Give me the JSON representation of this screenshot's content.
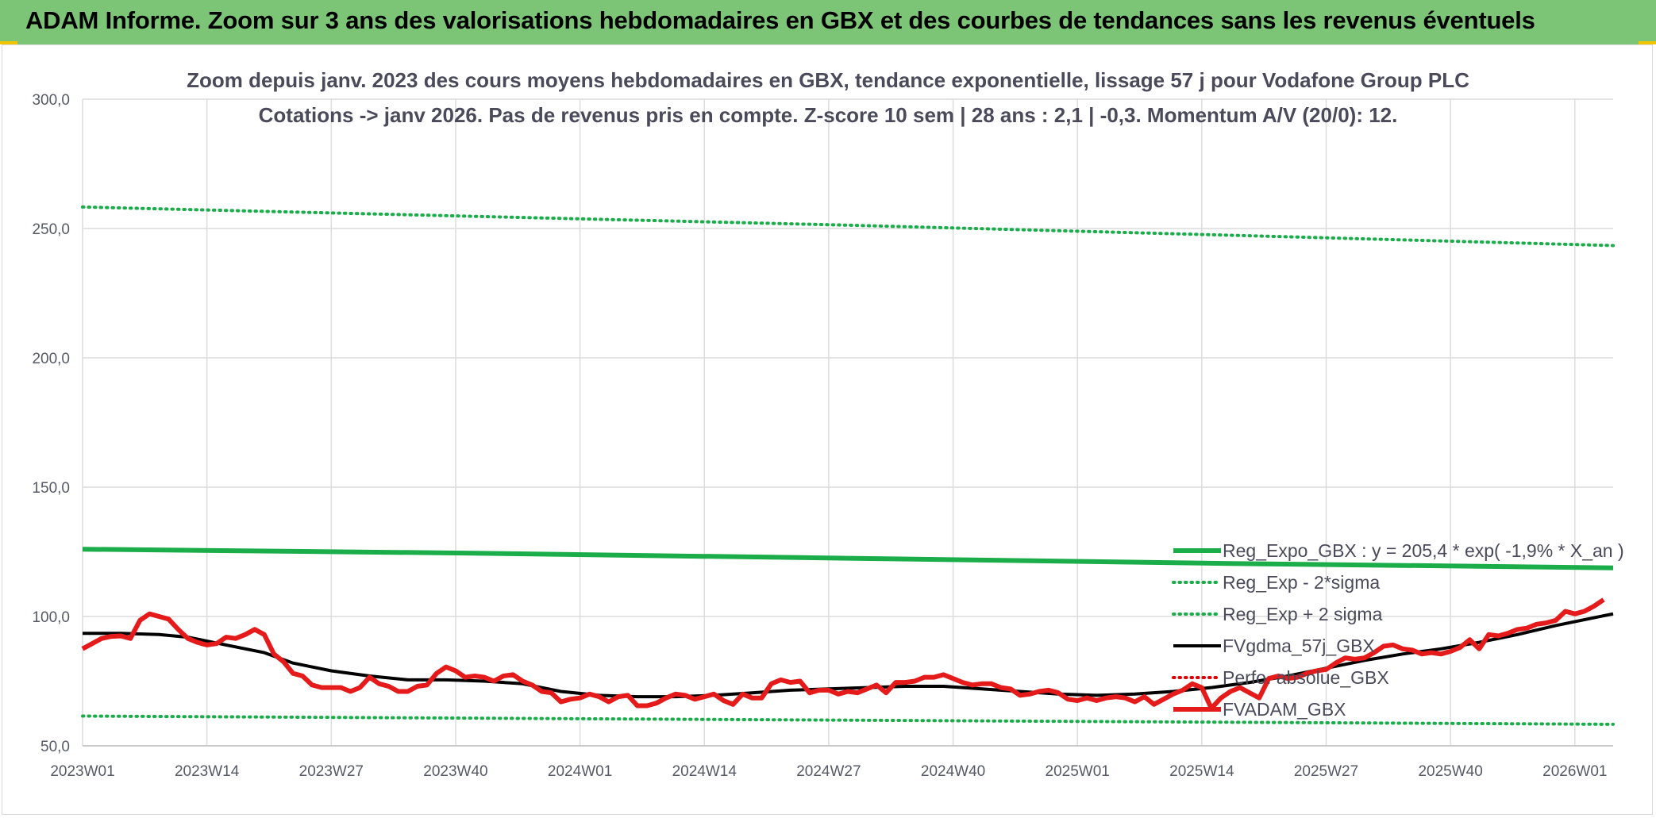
{
  "banner": {
    "title": "ADAM Informe. Zoom sur 3 ans des valorisations hebdomadaires en GBX et des courbes de tendances sans les revenus éventuels",
    "bg_color": "#7cc576",
    "corner_color": "#f2c500"
  },
  "chart_data": {
    "type": "line",
    "title_line1": "Zoom depuis janv. 2023 des cours moyens hebdomadaires en GBX, tendance exponentielle, lissage 57 j pour Vodafone Group PLC",
    "title_line2": "Cotations -> janv 2026. Pas de revenus pris en compte. Z-score 10 sem | 28 ans : 2,1 | -0,3. Momentum A/V (20/0): 12.",
    "x_tick_labels": [
      "2023W01",
      "2023W14",
      "2023W27",
      "2023W40",
      "2024W01",
      "2024W14",
      "2024W27",
      "2024W40",
      "2025W01",
      "2025W14",
      "2025W27",
      "2025W40",
      "2026W01"
    ],
    "x_tick_weeks": [
      0,
      13,
      26,
      39,
      52,
      65,
      78,
      91,
      104,
      117,
      130,
      143,
      156
    ],
    "xlim_weeks": [
      0,
      160
    ],
    "ylim": [
      50,
      300
    ],
    "y_ticks": [
      "50,0",
      "100,0",
      "150,0",
      "200,0",
      "250,0",
      "300,0"
    ],
    "grid": true,
    "legend_position": "bottom-right",
    "series": [
      {
        "name": "Reg_Expo_GBX : y = 205,4 * exp( -1,9% *  X_an )",
        "color": "#1aad4a",
        "style": "solid-thick",
        "points": [
          [
            0,
            126
          ],
          [
            40,
            124.5
          ],
          [
            80,
            122.5
          ],
          [
            120,
            120.5
          ],
          [
            160,
            118.8
          ]
        ]
      },
      {
        "name": "Reg_Exp - 2*sigma",
        "color": "#1aad4a",
        "style": "dotted",
        "points": [
          [
            0,
            61.5
          ],
          [
            40,
            60.7
          ],
          [
            80,
            59.9
          ],
          [
            120,
            59.1
          ],
          [
            160,
            58.3
          ]
        ]
      },
      {
        "name": "Reg_Exp + 2 sigma",
        "color": "#1aad4a",
        "style": "dotted",
        "points": [
          [
            0,
            258.3
          ],
          [
            40,
            254.8
          ],
          [
            80,
            251.3
          ],
          [
            120,
            247.4
          ],
          [
            160,
            243.4
          ]
        ]
      },
      {
        "name": "FVgdma_57j_GBX",
        "color": "#000000",
        "style": "solid",
        "points": [
          [
            0,
            93.5
          ],
          [
            4,
            93.5
          ],
          [
            8,
            93
          ],
          [
            11,
            92
          ],
          [
            15,
            89
          ],
          [
            19,
            86
          ],
          [
            22,
            82
          ],
          [
            26,
            79
          ],
          [
            30,
            77
          ],
          [
            34,
            75.5
          ],
          [
            38,
            75.5
          ],
          [
            42,
            75
          ],
          [
            46,
            74
          ],
          [
            50,
            71
          ],
          [
            54,
            69.5
          ],
          [
            58,
            69
          ],
          [
            62,
            69
          ],
          [
            66,
            69.5
          ],
          [
            70,
            70.5
          ],
          [
            74,
            71.5
          ],
          [
            78,
            72
          ],
          [
            82,
            72.5
          ],
          [
            86,
            73
          ],
          [
            90,
            73
          ],
          [
            94,
            72
          ],
          [
            98,
            71
          ],
          [
            102,
            70
          ],
          [
            106,
            69.5
          ],
          [
            110,
            70
          ],
          [
            114,
            71
          ],
          [
            118,
            72.5
          ],
          [
            122,
            74.5
          ],
          [
            126,
            77
          ],
          [
            130,
            80
          ],
          [
            134,
            83
          ],
          [
            138,
            85.5
          ],
          [
            142,
            87.5
          ],
          [
            146,
            90
          ],
          [
            150,
            93
          ],
          [
            154,
            96.5
          ],
          [
            158,
            99.5
          ],
          [
            160,
            101
          ]
        ]
      },
      {
        "name": "Perfo. absolue_GBX",
        "color": "#e00000",
        "style": "dotted",
        "points": []
      },
      {
        "name": "FVADAM_GBX",
        "color": "#e51a1a",
        "style": "solid-thick",
        "points": [
          [
            0,
            87.5
          ],
          [
            1,
            89.5
          ],
          [
            2,
            91.5
          ],
          [
            3,
            92.3
          ],
          [
            4,
            92.5
          ],
          [
            5,
            91.5
          ],
          [
            6,
            98.5
          ],
          [
            7,
            101
          ],
          [
            8,
            100
          ],
          [
            9,
            99
          ],
          [
            10,
            95
          ],
          [
            11,
            91.5
          ],
          [
            12,
            90
          ],
          [
            13,
            89
          ],
          [
            14,
            89.5
          ],
          [
            15,
            92
          ],
          [
            16,
            91.5
          ],
          [
            17,
            93
          ],
          [
            18,
            95
          ],
          [
            19,
            93
          ],
          [
            20,
            85.5
          ],
          [
            21,
            82.5
          ],
          [
            22,
            78
          ],
          [
            23,
            77
          ],
          [
            24,
            73.5
          ],
          [
            25,
            72.5
          ],
          [
            26,
            72.5
          ],
          [
            27,
            72.5
          ],
          [
            28,
            71
          ],
          [
            29,
            72.5
          ],
          [
            30,
            76.5
          ],
          [
            31,
            74
          ],
          [
            32,
            73
          ],
          [
            33,
            71
          ],
          [
            34,
            71
          ],
          [
            35,
            73
          ],
          [
            36,
            73.5
          ],
          [
            37,
            78
          ],
          [
            38,
            80.5
          ],
          [
            39,
            79
          ],
          [
            40,
            76.5
          ],
          [
            41,
            77
          ],
          [
            42,
            76.5
          ],
          [
            43,
            75
          ],
          [
            44,
            77
          ],
          [
            45,
            77.5
          ],
          [
            46,
            75
          ],
          [
            47,
            73.5
          ],
          [
            48,
            71
          ],
          [
            49,
            70.5
          ],
          [
            50,
            67
          ],
          [
            51,
            68
          ],
          [
            52,
            68.5
          ],
          [
            53,
            70
          ],
          [
            54,
            69
          ],
          [
            55,
            67
          ],
          [
            56,
            69
          ],
          [
            57,
            69.5
          ],
          [
            58,
            65.5
          ],
          [
            59,
            65.5
          ],
          [
            60,
            66.5
          ],
          [
            61,
            68.5
          ],
          [
            62,
            70
          ],
          [
            63,
            69.5
          ],
          [
            64,
            68
          ],
          [
            65,
            69
          ],
          [
            66,
            70
          ],
          [
            67,
            67.5
          ],
          [
            68,
            66
          ],
          [
            69,
            70
          ],
          [
            70,
            68.5
          ],
          [
            71,
            68.5
          ],
          [
            72,
            74
          ],
          [
            73,
            75.5
          ],
          [
            74,
            74.5
          ],
          [
            75,
            75
          ],
          [
            76,
            70.5
          ],
          [
            77,
            71.5
          ],
          [
            78,
            71.5
          ],
          [
            79,
            70
          ],
          [
            80,
            71
          ],
          [
            81,
            70.5
          ],
          [
            82,
            72
          ],
          [
            83,
            73.5
          ],
          [
            84,
            70.5
          ],
          [
            85,
            74.5
          ],
          [
            86,
            74.5
          ],
          [
            87,
            75
          ],
          [
            88,
            76.5
          ],
          [
            89,
            76.5
          ],
          [
            90,
            77.5
          ],
          [
            91,
            76
          ],
          [
            92,
            74.5
          ],
          [
            93,
            73.5
          ],
          [
            94,
            74
          ],
          [
            95,
            74
          ],
          [
            96,
            72.5
          ],
          [
            97,
            72
          ],
          [
            98,
            69.5
          ],
          [
            99,
            70
          ],
          [
            100,
            71
          ],
          [
            101,
            71.5
          ],
          [
            102,
            70.5
          ],
          [
            103,
            68
          ],
          [
            104,
            67.5
          ],
          [
            105,
            68.5
          ],
          [
            106,
            67.5
          ],
          [
            107,
            68.5
          ],
          [
            108,
            69
          ],
          [
            109,
            68.5
          ],
          [
            110,
            67
          ],
          [
            111,
            69
          ],
          [
            112,
            66
          ],
          [
            113,
            68
          ],
          [
            114,
            70
          ],
          [
            115,
            71.5
          ],
          [
            116,
            74
          ],
          [
            117,
            72.5
          ],
          [
            118,
            64.5
          ],
          [
            119,
            68.5
          ],
          [
            120,
            71
          ],
          [
            121,
            72.5
          ],
          [
            122,
            70.5
          ],
          [
            123,
            68.5
          ],
          [
            124,
            76
          ],
          [
            125,
            77
          ],
          [
            126,
            76
          ],
          [
            127,
            76.5
          ],
          [
            128,
            78
          ],
          [
            129,
            79
          ],
          [
            130,
            79.5
          ],
          [
            131,
            82
          ],
          [
            132,
            84
          ],
          [
            133,
            83.5
          ],
          [
            134,
            84
          ],
          [
            135,
            86
          ],
          [
            136,
            88.5
          ],
          [
            137,
            89
          ],
          [
            138,
            87.5
          ],
          [
            139,
            87
          ],
          [
            140,
            85.5
          ],
          [
            141,
            86
          ],
          [
            142,
            85.5
          ],
          [
            143,
            86.5
          ],
          [
            144,
            88
          ],
          [
            145,
            91
          ],
          [
            146,
            87.5
          ],
          [
            147,
            93
          ],
          [
            148,
            92.5
          ],
          [
            149,
            93.5
          ],
          [
            150,
            95
          ],
          [
            151,
            95.5
          ],
          [
            152,
            97
          ],
          [
            153,
            97.5
          ],
          [
            154,
            98.5
          ],
          [
            155,
            102
          ],
          [
            156,
            101
          ],
          [
            157,
            102
          ],
          [
            158,
            104
          ],
          [
            159,
            106.5
          ]
        ]
      }
    ]
  }
}
